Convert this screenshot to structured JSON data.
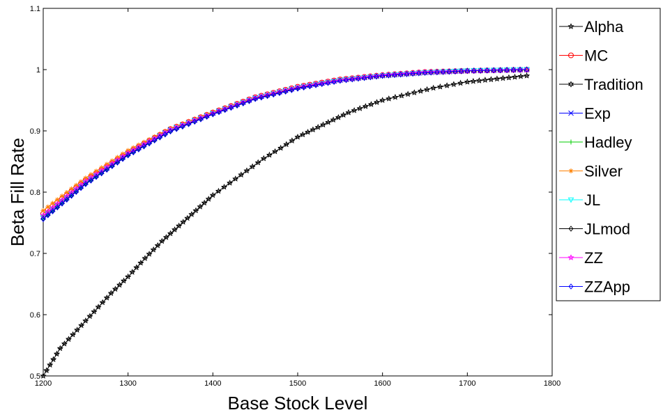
{
  "chart_data": {
    "type": "line",
    "title": "",
    "xlabel": "Base Stock Level",
    "ylabel": "Beta Fill Rate",
    "xlim": [
      1200,
      1800
    ],
    "ylim": [
      0.5,
      1.1
    ],
    "xticks": [
      "1200",
      "1300",
      "1400",
      "1500",
      "1600",
      "1700",
      "1800"
    ],
    "yticks": [
      "0.5",
      "0.6",
      "0.7",
      "0.8",
      "0.9",
      "1",
      "1.1"
    ],
    "grid": false,
    "legend_position": "outside-right-top",
    "series": [
      {
        "name": "Alpha",
        "color": "#000000",
        "marker": "star",
        "x": [
          1200,
          1220,
          1240,
          1260,
          1280,
          1300,
          1320,
          1340,
          1360,
          1380,
          1400,
          1420,
          1440,
          1460,
          1480,
          1500,
          1530,
          1560,
          1600,
          1630,
          1660,
          1700,
          1770
        ],
        "y": [
          0.5,
          0.545,
          0.575,
          0.605,
          0.635,
          0.662,
          0.692,
          0.72,
          0.745,
          0.77,
          0.795,
          0.815,
          0.835,
          0.855,
          0.872,
          0.89,
          0.91,
          0.93,
          0.95,
          0.96,
          0.97,
          0.98,
          0.99
        ]
      },
      {
        "name": "MC",
        "color": "#ff0000",
        "marker": "circle",
        "x": [
          1200,
          1250,
          1300,
          1350,
          1400,
          1450,
          1500,
          1550,
          1600,
          1650,
          1700,
          1770
        ],
        "y": [
          0.765,
          0.82,
          0.865,
          0.903,
          0.93,
          0.955,
          0.972,
          0.984,
          0.991,
          0.996,
          0.998,
          1.0
        ]
      },
      {
        "name": "Tradition",
        "color": "#000000",
        "marker": "hexagram",
        "x": [
          1200,
          1250,
          1300,
          1350,
          1400,
          1450,
          1500,
          1550,
          1600,
          1650,
          1700,
          1770
        ],
        "y": [
          0.758,
          0.815,
          0.862,
          0.901,
          0.928,
          0.953,
          0.97,
          0.982,
          0.99,
          0.995,
          0.998,
          1.0
        ]
      },
      {
        "name": "Exp",
        "color": "#0000ff",
        "marker": "x",
        "x": [
          1200,
          1250,
          1300,
          1350,
          1400,
          1450,
          1500,
          1550,
          1600,
          1650,
          1700,
          1770
        ],
        "y": [
          0.76,
          0.816,
          0.863,
          0.902,
          0.929,
          0.954,
          0.971,
          0.983,
          0.99,
          0.995,
          0.998,
          1.0
        ]
      },
      {
        "name": "Hadley",
        "color": "#00cc00",
        "marker": "plus",
        "x": [
          1200,
          1250,
          1300,
          1350,
          1400,
          1450,
          1500,
          1550,
          1600,
          1650,
          1700,
          1770
        ],
        "y": [
          0.762,
          0.817,
          0.864,
          0.902,
          0.929,
          0.954,
          0.971,
          0.983,
          0.991,
          0.995,
          0.998,
          1.0
        ]
      },
      {
        "name": "Silver",
        "color": "#ff8000",
        "marker": "asterisk",
        "x": [
          1200,
          1250,
          1300,
          1350,
          1400,
          1450,
          1500,
          1550,
          1600,
          1650,
          1700,
          1770
        ],
        "y": [
          0.77,
          0.823,
          0.868,
          0.904,
          0.931,
          0.955,
          0.972,
          0.984,
          0.991,
          0.996,
          0.998,
          1.0
        ]
      },
      {
        "name": "JL",
        "color": "#00ffff",
        "marker": "triangle-down",
        "x": [
          1200,
          1250,
          1300,
          1350,
          1400,
          1450,
          1500,
          1550,
          1600,
          1650,
          1700,
          1770
        ],
        "y": [
          0.758,
          0.815,
          0.862,
          0.901,
          0.928,
          0.953,
          0.97,
          0.982,
          0.99,
          0.995,
          0.998,
          1.0
        ]
      },
      {
        "name": "JLmod",
        "color": "#000000",
        "marker": "diamond",
        "x": [
          1200,
          1250,
          1300,
          1350,
          1400,
          1450,
          1500,
          1550,
          1600,
          1650,
          1700,
          1770
        ],
        "y": [
          0.757,
          0.814,
          0.861,
          0.9,
          0.928,
          0.953,
          0.97,
          0.982,
          0.99,
          0.995,
          0.998,
          1.0
        ]
      },
      {
        "name": "ZZ",
        "color": "#ff00ff",
        "marker": "pentagram",
        "x": [
          1200,
          1250,
          1300,
          1350,
          1400,
          1450,
          1500,
          1550,
          1600,
          1650,
          1700,
          1770
        ],
        "y": [
          0.762,
          0.818,
          0.864,
          0.902,
          0.929,
          0.954,
          0.971,
          0.983,
          0.991,
          0.996,
          0.998,
          1.0
        ]
      },
      {
        "name": "ZZApp",
        "color": "#0000ff",
        "marker": "diamond",
        "x": [
          1200,
          1250,
          1300,
          1350,
          1400,
          1450,
          1500,
          1550,
          1600,
          1650,
          1700,
          1770
        ],
        "y": [
          0.756,
          0.813,
          0.86,
          0.899,
          0.927,
          0.952,
          0.969,
          0.982,
          0.99,
          0.995,
          0.998,
          1.0
        ]
      }
    ]
  }
}
